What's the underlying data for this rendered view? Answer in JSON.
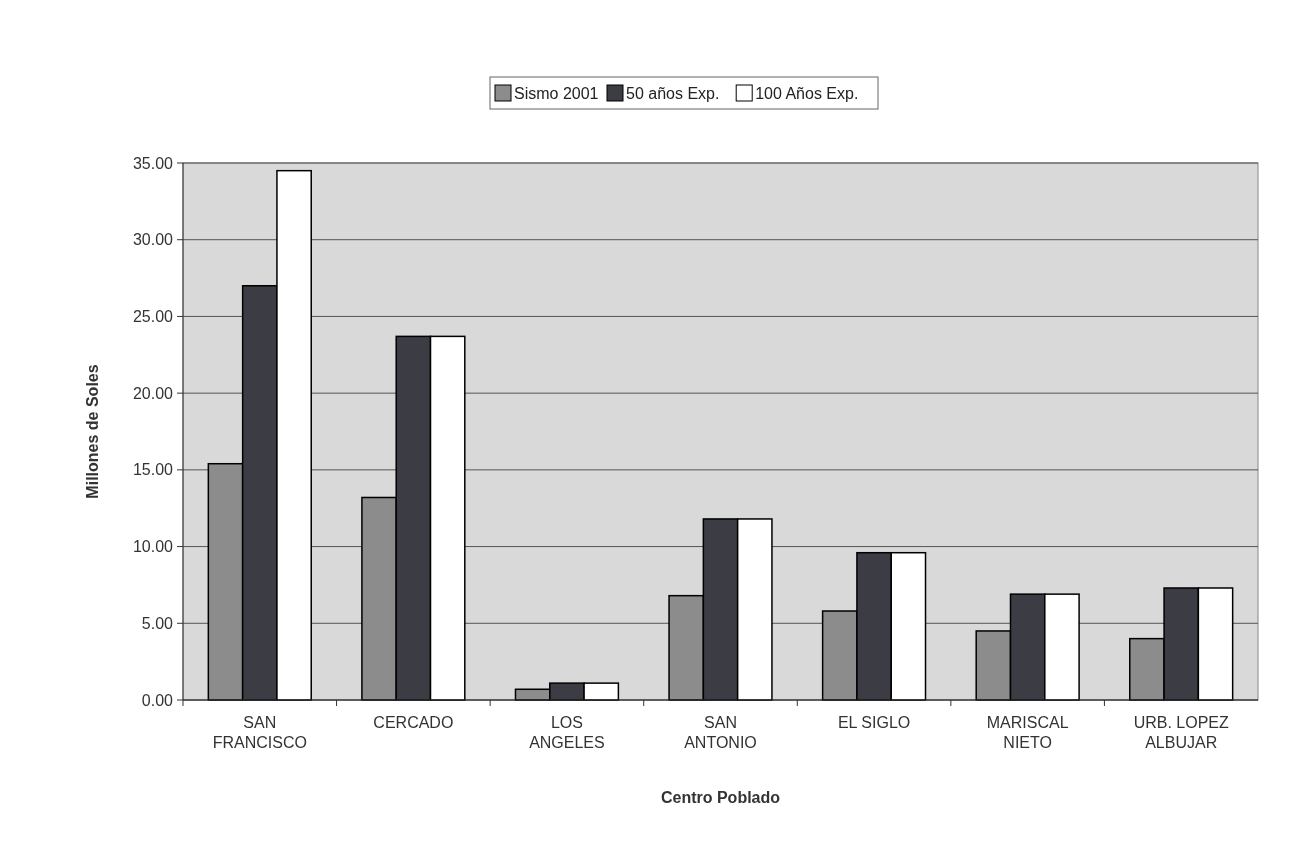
{
  "chart_data": {
    "type": "bar",
    "xlabel": "Centro Poblado",
    "ylabel": "Millones de Soles",
    "categories": [
      "SAN\nFRANCISCO",
      "CERCADO",
      "LOS\nANGELES",
      "SAN\nANTONIO",
      "EL SIGLO",
      "MARISCAL\nNIETO",
      "URB. LOPEZ\nALBUJAR"
    ],
    "series": [
      {
        "name": "Sismo 2001",
        "color": "#8c8c8c",
        "values": [
          15.4,
          13.2,
          0.7,
          6.8,
          5.8,
          4.5,
          4.0
        ]
      },
      {
        "name": "50 años Exp.",
        "color": "#3c3c44",
        "values": [
          27.0,
          23.7,
          1.1,
          11.8,
          9.6,
          6.9,
          7.3
        ]
      },
      {
        "name": "100 Años Exp.",
        "color": "#ffffff",
        "values": [
          34.5,
          23.7,
          1.1,
          11.8,
          9.6,
          6.9,
          7.3
        ]
      }
    ],
    "ylim": [
      0,
      35
    ],
    "yticks": [
      {
        "value": 0,
        "label": "0.00"
      },
      {
        "value": 5,
        "label": "5.00"
      },
      {
        "value": 10,
        "label": "10.00"
      },
      {
        "value": 15,
        "label": "15.00"
      },
      {
        "value": 20,
        "label": "20.00"
      },
      {
        "value": 25,
        "label": "25.00"
      },
      {
        "value": 30,
        "label": "30.00"
      },
      {
        "value": 35,
        "label": "35.00"
      }
    ],
    "grid": "y",
    "legend": "top"
  }
}
